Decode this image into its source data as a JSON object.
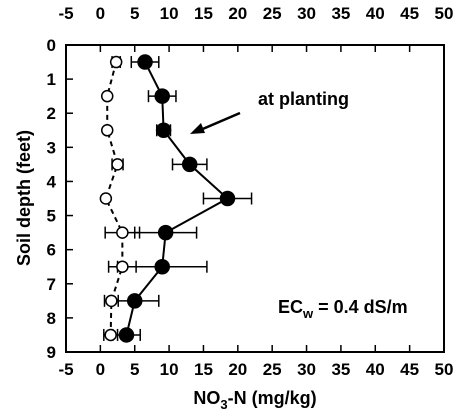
{
  "chart_data": {
    "type": "line",
    "title": "",
    "xlabel": "NO",
    "xlabel_sub": "3",
    "xlabel_rest": "-N  (mg/kg)",
    "ylabel": "Soil depth (feet)",
    "xlim": [
      -5,
      50
    ],
    "ylim": [
      0,
      9
    ],
    "y_inverted": true,
    "x_ticks": [
      -5,
      0,
      5,
      10,
      15,
      20,
      25,
      30,
      35,
      40,
      45,
      50
    ],
    "y_ticks": [
      0,
      1,
      2,
      3,
      4,
      5,
      6,
      7,
      8,
      9
    ],
    "x_axis_top_and_bottom": true,
    "grid": false,
    "series": [
      {
        "marker": "filled-circle",
        "line": "solid",
        "color": "#000000",
        "points": [
          {
            "x": 6.5,
            "y": 0.5,
            "err": 2
          },
          {
            "x": 9.0,
            "y": 1.5,
            "err": 2
          },
          {
            "x": 9.2,
            "y": 2.5,
            "err": 1
          },
          {
            "x": 13.0,
            "y": 3.5,
            "err": 2.5
          },
          {
            "x": 18.5,
            "y": 4.5,
            "err": 3.5
          },
          {
            "x": 9.5,
            "y": 5.5,
            "err": 4.5
          },
          {
            "x": 9.0,
            "y": 6.5,
            "err": 6.5
          },
          {
            "x": 5.0,
            "y": 7.5,
            "err": 3.5
          },
          {
            "x": 3.8,
            "y": 8.5,
            "err": 2
          }
        ]
      },
      {
        "marker": "open-circle",
        "line": "dashed",
        "color": "#000000",
        "points": [
          {
            "x": 2.3,
            "y": 0.5,
            "err": 0.6
          },
          {
            "x": 1.0,
            "y": 1.5,
            "err": 0
          },
          {
            "x": 1.0,
            "y": 2.5,
            "err": 0
          },
          {
            "x": 2.5,
            "y": 3.5,
            "err": 0.8
          },
          {
            "x": 0.8,
            "y": 4.5,
            "err": 0
          },
          {
            "x": 3.2,
            "y": 5.5,
            "err": 2.5
          },
          {
            "x": 3.2,
            "y": 6.5,
            "err": 2.0
          },
          {
            "x": 1.6,
            "y": 7.5,
            "err": 1.0
          },
          {
            "x": 1.5,
            "y": 8.5,
            "err": 1.0
          }
        ]
      }
    ],
    "annotations": {
      "at_planting": "at planting",
      "ec_main": "EC",
      "ec_sub": "w",
      "ec_rest": " = 0.4 dS/m"
    }
  }
}
